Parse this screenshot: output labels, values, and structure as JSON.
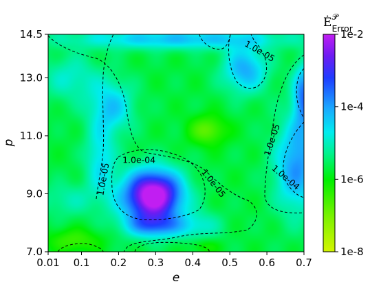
{
  "chart_data": {
    "type": "heatmap",
    "title": "",
    "xlabel": "e",
    "ylabel": "p",
    "xlim": [
      0.01,
      0.7
    ],
    "ylim": [
      7.0,
      14.5
    ],
    "x_ticks": [
      "0.01",
      "0.1",
      "0.2",
      "0.3",
      "0.4",
      "0.5",
      "0.6",
      "0.7"
    ],
    "x_tick_values": [
      0.01,
      0.1,
      0.2,
      0.3,
      0.4,
      0.5,
      0.6,
      0.7
    ],
    "y_ticks": [
      "7.0",
      "9.0",
      "11.0",
      "13.0",
      "14.5"
    ],
    "y_tick_values": [
      7.0,
      9.0,
      11.0,
      13.0,
      14.5
    ],
    "colorbar": {
      "label_main": "Ė",
      "label_sup": "𝒫",
      "label_sub": "Error",
      "scale": "log",
      "range": [
        1e-08,
        0.01
      ],
      "ticks": [
        "1e-8",
        "1e-6",
        "1e-4",
        "1e-2"
      ],
      "tick_values": [
        -8,
        -6,
        -4,
        -2
      ]
    },
    "contour_labels": [
      {
        "text": "1.0e-05",
        "e": 0.58,
        "p": 13.9,
        "angle": 30
      },
      {
        "text": "1.0e-04",
        "e": 0.255,
        "p": 10.15,
        "angle": 0
      },
      {
        "text": "1.0e-05",
        "e": 0.16,
        "p": 9.5,
        "angle": -80
      },
      {
        "text": "1.0e-05",
        "e": 0.455,
        "p": 9.35,
        "angle": 52
      },
      {
        "text": "1.0e-05",
        "e": 0.615,
        "p": 10.85,
        "angle": -72
      },
      {
        "text": "1.0e-04",
        "e": 0.65,
        "p": 9.55,
        "angle": 40
      }
    ],
    "blobs": [
      {
        "e": 0.3,
        "p": 9.0,
        "re": 0.07,
        "rp": 0.8,
        "v": -3.35
      },
      {
        "e": 0.28,
        "p": 8.85,
        "re": 0.085,
        "rp": 0.95,
        "v": -3.7
      },
      {
        "e": 0.3,
        "p": 7.9,
        "re": 0.08,
        "rp": 0.4,
        "v": -4.2
      },
      {
        "e": 0.18,
        "p": 12.0,
        "re": 0.06,
        "rp": 0.9,
        "v": -4.4
      },
      {
        "e": 0.15,
        "p": 10.2,
        "re": 0.04,
        "rp": 1.2,
        "v": -4.6
      },
      {
        "e": 0.54,
        "p": 13.3,
        "re": 0.06,
        "rp": 0.8,
        "v": -4.1
      },
      {
        "e": 0.36,
        "p": 14.35,
        "re": 0.3,
        "rp": 0.35,
        "v": -4.3
      },
      {
        "e": 0.07,
        "p": 13.0,
        "re": 0.08,
        "rp": 0.8,
        "v": -4.9
      },
      {
        "e": 0.68,
        "p": 10.0,
        "re": 0.06,
        "rp": 1.6,
        "v": -3.9
      },
      {
        "e": 0.7,
        "p": 12.4,
        "re": 0.03,
        "rp": 1.1,
        "v": -3.7
      },
      {
        "e": 0.06,
        "p": 8.8,
        "re": 0.08,
        "rp": 0.6,
        "v": -5.1
      },
      {
        "e": 0.42,
        "p": 7.9,
        "re": 0.06,
        "rp": 0.5,
        "v": -5.0
      },
      {
        "e": 0.44,
        "p": 11.2,
        "re": 0.05,
        "rp": 0.5,
        "v": -6.8
      },
      {
        "e": 0.08,
        "p": 7.4,
        "re": 0.07,
        "rp": 0.4,
        "v": -6.5
      },
      {
        "e": 0.43,
        "p": 7.2,
        "re": 0.04,
        "rp": 0.25,
        "v": -6.2
      }
    ],
    "background_value": -5.7
  }
}
